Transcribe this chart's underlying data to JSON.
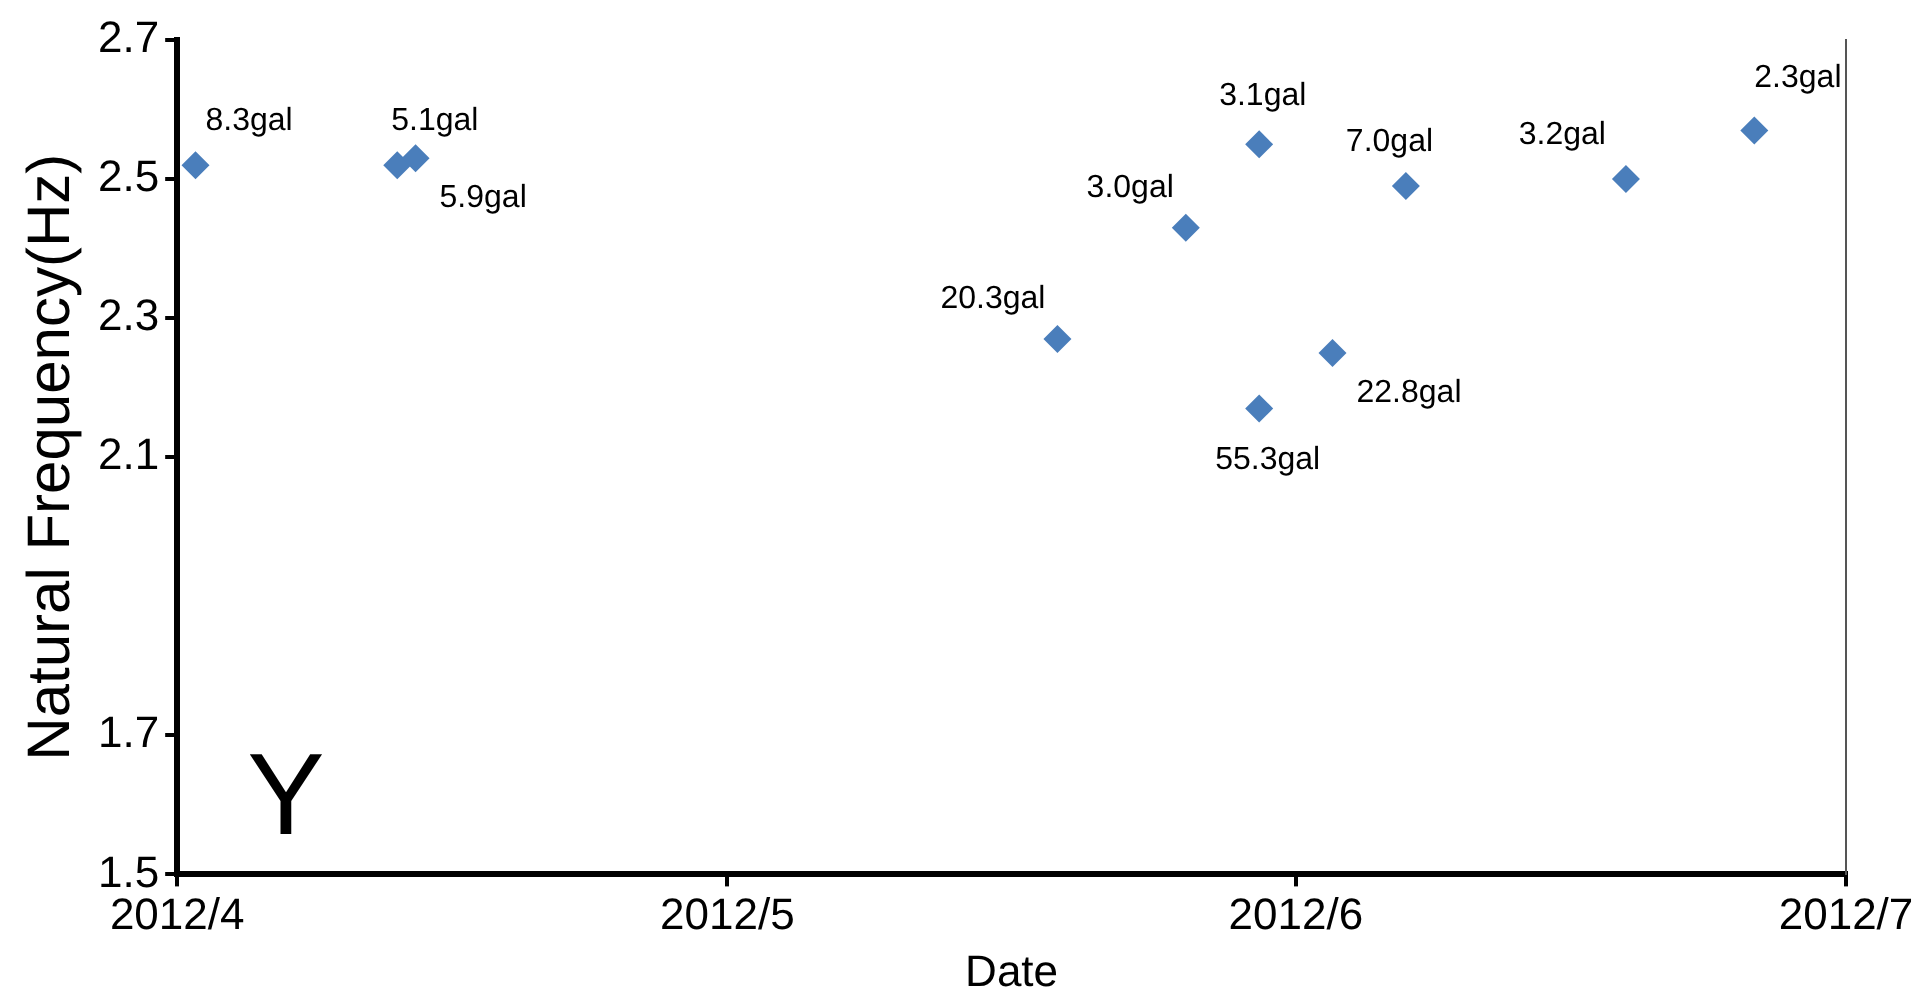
{
  "chart_data": {
    "type": "scatter",
    "xlabel": "Date",
    "ylabel": "Natural Frequency(Hz)",
    "x": [
      "2012-04-02",
      "2012-04-13",
      "2012-04-14",
      "2012-05-19",
      "2012-05-26",
      "2012-05-30",
      "2012-05-30",
      "2012-06-03",
      "2012-06-07",
      "2012-06-19",
      "2012-06-26"
    ],
    "series": [
      {
        "color": "#4a7ebb",
        "values": [
          2.52,
          2.52,
          2.53,
          2.27,
          2.43,
          2.55,
          2.17,
          2.25,
          2.49,
          2.5,
          2.57
        ]
      }
    ],
    "xlim": [
      "2012-04",
      "2012-07"
    ],
    "xticks": [
      {
        "value": "2012-04",
        "label": "2012/4"
      },
      {
        "value": "2012-05",
        "label": "2012/5"
      },
      {
        "value": "2012-06",
        "label": "2012/6"
      },
      {
        "value": "2012-07",
        "label": "2012/7"
      }
    ],
    "ylim": [
      1.5,
      2.7
    ],
    "yticks": [
      1.5,
      1.7,
      2.1,
      2.3,
      2.5,
      2.7
    ],
    "marker": "diamond",
    "grid": false,
    "legend": false,
    "annotations": [
      {
        "text": "8.3gal",
        "x": "2012-04-02",
        "y": 2.52
      },
      {
        "text": "5.1gal",
        "x": "2012-04-13",
        "y": 2.52
      },
      {
        "text": "5.9gal",
        "x": "2012-04-14",
        "y": 2.53
      },
      {
        "text": "20.3gal",
        "x": "2012-05-19",
        "y": 2.27
      },
      {
        "text": "3.0gal",
        "x": "2012-05-26",
        "y": 2.43
      },
      {
        "text": "3.1gal",
        "x": "2012-05-30",
        "y": 2.55
      },
      {
        "text": "55.3gal",
        "x": "2012-05-30",
        "y": 2.17
      },
      {
        "text": "22.8gal",
        "x": "2012-06-03",
        "y": 2.25
      },
      {
        "text": "7.0gal",
        "x": "2012-06-07",
        "y": 2.49
      },
      {
        "text": "3.2gal",
        "x": "2012-06-19",
        "y": 2.5
      },
      {
        "text": "2.3gal",
        "x": "2012-06-26",
        "y": 2.57
      },
      "Y"
    ]
  }
}
